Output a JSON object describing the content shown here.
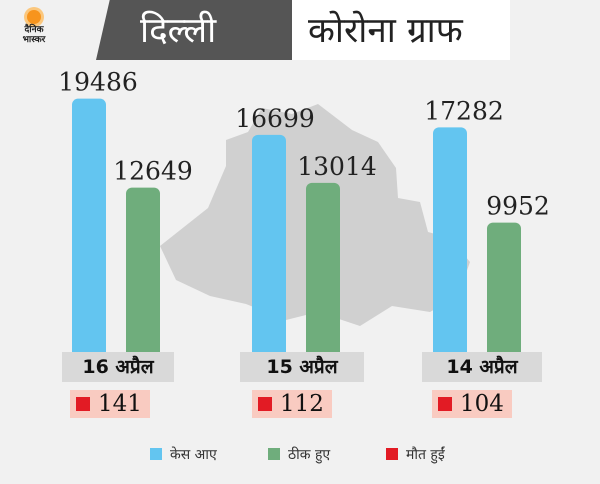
{
  "logo": {
    "line1": "दैनिक",
    "line2": "भास्कर"
  },
  "banner": {
    "left": "दिल्ली",
    "right": "कोरोना ग्राफ"
  },
  "colors": {
    "cases": "#63c5f0",
    "recovered": "#6fad7c",
    "deaths": "#e21b24"
  },
  "legend": [
    {
      "label": "केस आए",
      "color": "#63c5f0"
    },
    {
      "label": "ठीक हुए",
      "color": "#6fad7c"
    },
    {
      "label": "मौत हुईं",
      "color": "#e21b24"
    }
  ],
  "chart_data": {
    "type": "bar",
    "categories": [
      "16 अप्रैल",
      "15 अप्रैल",
      "14 अप्रैल"
    ],
    "series": [
      {
        "name": "केस आए",
        "values": [
          19486,
          16699,
          17282
        ]
      },
      {
        "name": "ठीक हुए",
        "values": [
          12649,
          13014,
          9952
        ]
      },
      {
        "name": "मौत हुईं",
        "values": [
          141,
          112,
          104
        ]
      }
    ],
    "title": "कोरोना ग्राफ",
    "ylim": [
      0,
      20000
    ],
    "grid": false,
    "legend_position": "bottom"
  }
}
